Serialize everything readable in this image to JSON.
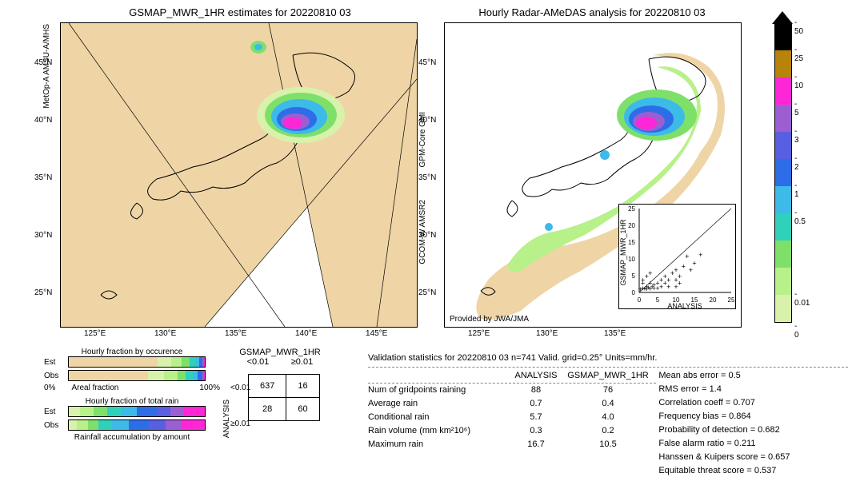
{
  "titles": {
    "left": "GSMAP_MWR_1HR estimates for 20220810 03",
    "right": "Hourly Radar-AMeDAS analysis for 20220810 03"
  },
  "left_side_labels": {
    "top": "MetOp-A\nAMSU-A/MHS",
    "mid": "GPM-Core\nGMI",
    "bot": "GCOM-W\nAMSR2"
  },
  "axes": {
    "lats": [
      "45°N",
      "40°N",
      "35°N",
      "30°N",
      "25°N"
    ],
    "lons_left": [
      "125°E",
      "130°E",
      "135°E",
      "140°E",
      "145°E"
    ],
    "lons_right": [
      "125°E",
      "130°E",
      "135°E"
    ]
  },
  "provided": "Provided by JWA/JMA",
  "colorbar": {
    "ticks": [
      "50",
      "25",
      "10",
      "5",
      "3",
      "2",
      "1",
      "0.5",
      "0.01",
      "0"
    ],
    "colors": {
      "50": "#000000",
      "25": "#b7830a",
      "10": "#ff26d7",
      "5": "#9b5fd1",
      "3": "#585fe0",
      "2": "#2e6de8",
      "1": "#3cbae8",
      "0.5": "#2fd1ba",
      "0.25": "#7fe069",
      "0.1": "#b8f089",
      "0.01": "#d8f2ab",
      "0": "#efd5a6"
    }
  },
  "small_bars": {
    "occ_title": "Hourly fraction by occurence",
    "rain_title": "Hourly fraction of total rain",
    "acc_title": "Rainfall accumulation by amount",
    "x0": "0%",
    "x1": "100%",
    "x_mid": "Areal fraction",
    "rows": [
      {
        "lbl": "Est",
        "segs": [
          [
            "#efd5a6",
            65
          ],
          [
            "#d8f2ab",
            10
          ],
          [
            "#b8f089",
            8
          ],
          [
            "#7fe069",
            6
          ],
          [
            "#2fd1ba",
            4
          ],
          [
            "#3cbae8",
            3
          ],
          [
            "#2e6de8",
            2
          ],
          [
            "#9b5fd1",
            1
          ],
          [
            "#ff26d7",
            1
          ]
        ]
      },
      {
        "lbl": "Obs",
        "segs": [
          [
            "#efd5a6",
            58
          ],
          [
            "#d8f2ab",
            12
          ],
          [
            "#b8f089",
            10
          ],
          [
            "#7fe069",
            6
          ],
          [
            "#2fd1ba",
            5
          ],
          [
            "#3cbae8",
            4
          ],
          [
            "#2e6de8",
            3
          ],
          [
            "#9b5fd1",
            1
          ],
          [
            "#ff26d7",
            1
          ]
        ]
      },
      {
        "lbl": "Est",
        "segs": [
          [
            "#d8f2ab",
            8
          ],
          [
            "#b8f089",
            10
          ],
          [
            "#7fe069",
            10
          ],
          [
            "#2fd1ba",
            10
          ],
          [
            "#3cbae8",
            12
          ],
          [
            "#2e6de8",
            15
          ],
          [
            "#585fe0",
            10
          ],
          [
            "#9b5fd1",
            10
          ],
          [
            "#ff26d7",
            15
          ]
        ]
      },
      {
        "lbl": "Obs",
        "segs": [
          [
            "#d8f2ab",
            6
          ],
          [
            "#b8f089",
            8
          ],
          [
            "#7fe069",
            8
          ],
          [
            "#2fd1ba",
            10
          ],
          [
            "#3cbae8",
            12
          ],
          [
            "#2e6de8",
            15
          ],
          [
            "#585fe0",
            12
          ],
          [
            "#9b5fd1",
            12
          ],
          [
            "#ff26d7",
            17
          ]
        ]
      }
    ]
  },
  "contingency": {
    "header": "GSMAP_MWR_1HR",
    "col1": "<0.01",
    "col2": "≥0.01",
    "side": "ANALYSIS",
    "r1": "<0.01",
    "r2": "≥0.01",
    "cells": [
      [
        "637",
        "16"
      ],
      [
        "28",
        "60"
      ]
    ]
  },
  "validation": {
    "title": "Validation statistics for 20220810 03  n=741 Valid. grid=0.25°  Units=mm/hr.",
    "col_h1": "ANALYSIS",
    "col_h2": "GSMAP_MWR_1HR",
    "rows": [
      {
        "name": "Num of gridpoints raining",
        "a": "88",
        "b": "76"
      },
      {
        "name": "Average rain",
        "a": "0.7",
        "b": "0.4"
      },
      {
        "name": "Conditional rain",
        "a": "5.7",
        "b": "4.0"
      },
      {
        "name": "Rain volume (mm km²10⁶)",
        "a": "0.3",
        "b": "0.2"
      },
      {
        "name": "Maximum rain",
        "a": "16.7",
        "b": "10.5"
      }
    ],
    "metrics": [
      "Mean abs error =    0.5",
      "RMS error =    1.4",
      "Correlation coeff =  0.707",
      "Frequency bias =  0.864",
      "Probability of detection =  0.682",
      "False alarm ratio =  0.211",
      "Hanssen & Kuipers score =  0.657",
      "Equitable threat score =  0.537"
    ]
  },
  "scatter": {
    "xlabel": "ANALYSIS",
    "ylabel": "GSMAP_MWR_1HR",
    "ticks": [
      "0",
      "5",
      "10",
      "15",
      "20",
      "25"
    ],
    "pts": [
      [
        0.3,
        0.2
      ],
      [
        1,
        0.5
      ],
      [
        1.5,
        0.3
      ],
      [
        2,
        1
      ],
      [
        2.5,
        0.7
      ],
      [
        3,
        2
      ],
      [
        3.5,
        1
      ],
      [
        4,
        1.5
      ],
      [
        5,
        2
      ],
      [
        5,
        0.5
      ],
      [
        6,
        1
      ],
      [
        6,
        3
      ],
      [
        7,
        2
      ],
      [
        7,
        4
      ],
      [
        8,
        3
      ],
      [
        8,
        1
      ],
      [
        9,
        5
      ],
      [
        10,
        3
      ],
      [
        10,
        6
      ],
      [
        11,
        4
      ],
      [
        12,
        7
      ],
      [
        13,
        10
      ],
      [
        14,
        6
      ],
      [
        15,
        8
      ],
      [
        16.7,
        10.5
      ],
      [
        2,
        0.2
      ],
      [
        3,
        0.3
      ],
      [
        4,
        0.5
      ],
      [
        1,
        2
      ],
      [
        1,
        3
      ],
      [
        2,
        4
      ],
      [
        3,
        5
      ],
      [
        10,
        1
      ],
      [
        11,
        2
      ]
    ]
  }
}
